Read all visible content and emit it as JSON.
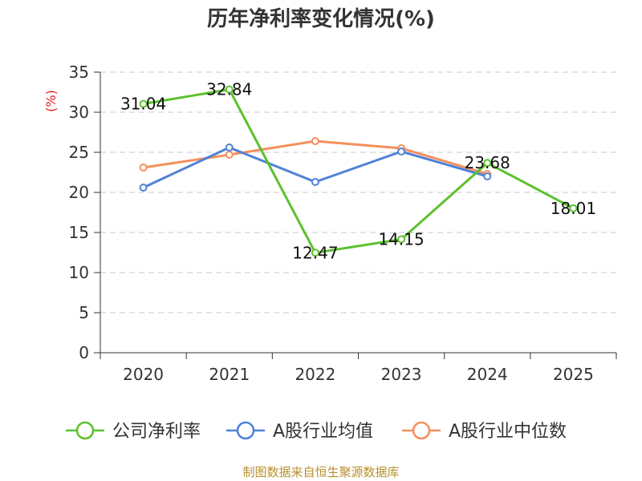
{
  "chart_data": {
    "type": "line",
    "title": "历年净利率变化情况(%)",
    "ylabel": "(%)",
    "xlabel": "",
    "ylim": [
      0,
      35
    ],
    "yticks": [
      0,
      5,
      10,
      15,
      20,
      25,
      30,
      35
    ],
    "categories": [
      "2020",
      "2021",
      "2022",
      "2023",
      "2024",
      "2025"
    ],
    "grid": true,
    "legend_position": "bottom",
    "series": [
      {
        "name": "公司净利率",
        "color": "#5cc12e",
        "values": [
          31.04,
          32.84,
          12.47,
          14.15,
          23.68,
          18.01
        ],
        "labels": [
          "31.04",
          "32.84",
          "12.47",
          "14.15",
          "23.68",
          "18.01"
        ]
      },
      {
        "name": "A股行业均值",
        "color": "#4f82d8",
        "values": [
          20.6,
          25.6,
          21.3,
          25.1,
          22.0,
          null
        ]
      },
      {
        "name": "A股行业中位数",
        "color": "#f58f5c",
        "values": [
          23.1,
          24.7,
          26.4,
          25.5,
          22.3,
          null
        ]
      }
    ]
  },
  "source": "制图数据来自恒生聚源数据库"
}
